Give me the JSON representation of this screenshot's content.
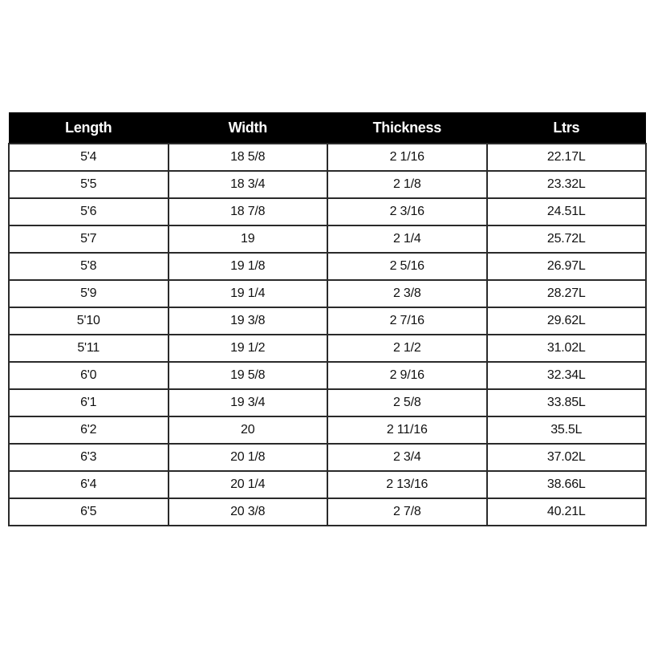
{
  "table": {
    "headers": [
      "Length",
      "Width",
      "Thickness",
      "Ltrs"
    ],
    "rows": [
      [
        "5'4",
        "18 5/8",
        "2 1/16",
        "22.17L"
      ],
      [
        "5'5",
        "18 3/4",
        "2 1/8",
        "23.32L"
      ],
      [
        "5'6",
        "18 7/8",
        "2 3/16",
        "24.51L"
      ],
      [
        "5'7",
        "19",
        "2 1/4",
        "25.72L"
      ],
      [
        "5'8",
        "19 1/8",
        "2 5/16",
        "26.97L"
      ],
      [
        "5'9",
        "19 1/4",
        "2 3/8",
        "28.27L"
      ],
      [
        "5'10",
        "19 3/8",
        "2 7/16",
        "29.62L"
      ],
      [
        "5'11",
        "19 1/2",
        "2 1/2",
        "31.02L"
      ],
      [
        "6'0",
        "19 5/8",
        "2 9/16",
        "32.34L"
      ],
      [
        "6'1",
        "19 3/4",
        "2 5/8",
        "33.85L"
      ],
      [
        "6'2",
        "20",
        "2 11/16",
        "35.5L"
      ],
      [
        "6'3",
        "20 1/8",
        "2 3/4",
        "37.02L"
      ],
      [
        "6'4",
        "20 1/4",
        "2 13/16",
        "38.66L"
      ],
      [
        "6'5",
        "20 3/8",
        "2 7/8",
        "40.21L"
      ]
    ]
  },
  "colors": {
    "header_bg": "#000000",
    "header_text": "#ffffff",
    "border": "#2a2a2a"
  }
}
